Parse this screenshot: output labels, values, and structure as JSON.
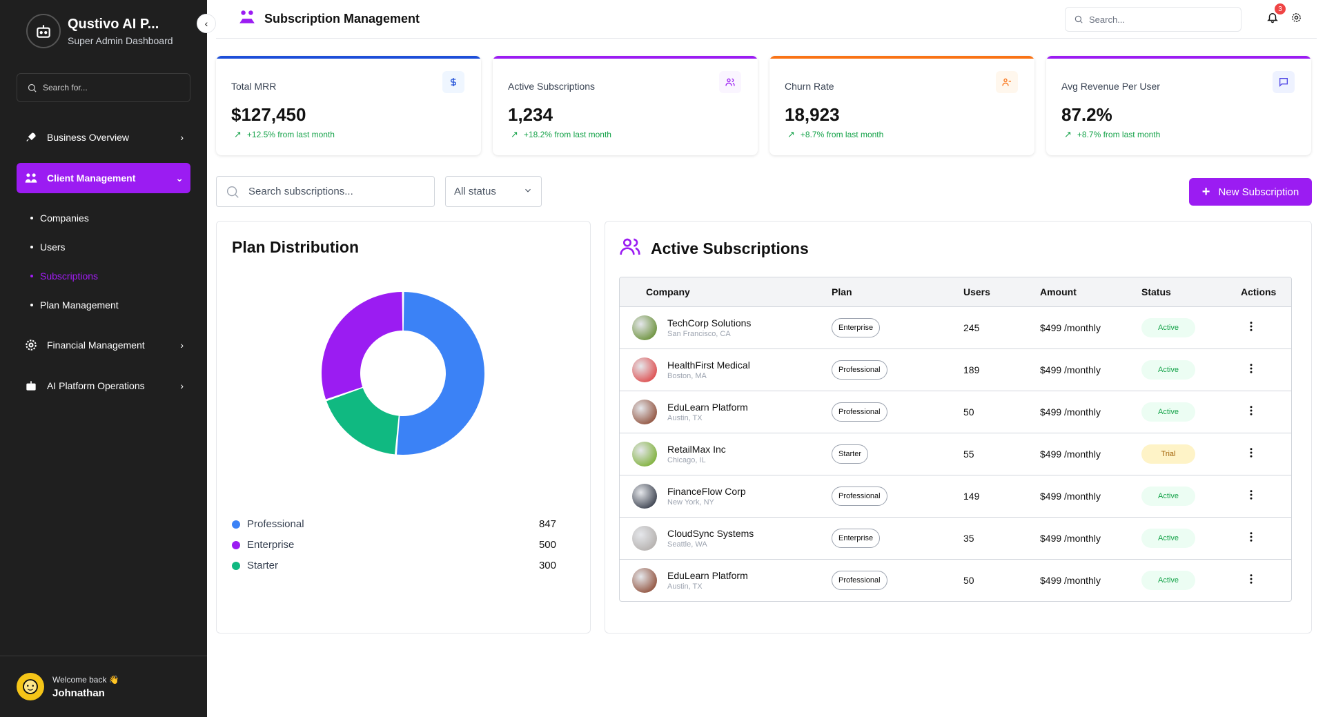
{
  "sidebar": {
    "brand_title": "Qustivo AI P...",
    "brand_subtitle": "Super Admin Dashboard",
    "search_placeholder": "Search for...",
    "nav": [
      {
        "label": "Business Overview",
        "icon": "rocket-icon"
      },
      {
        "label": "Client Management",
        "icon": "users-group-icon",
        "active": true
      },
      {
        "label": "Financial Management",
        "icon": "gear-icon"
      },
      {
        "label": "AI Platform Operations",
        "icon": "robot-icon"
      }
    ],
    "sub_items": [
      {
        "label": "Companies"
      },
      {
        "label": "Users"
      },
      {
        "label": "Subscriptions",
        "active": true
      },
      {
        "label": "Plan Management"
      }
    ],
    "welcome": "Welcome back 👋",
    "username": "Johnathan"
  },
  "header": {
    "title": "Subscription Management",
    "search_placeholder": "Search...",
    "notification_count": "3"
  },
  "stats": [
    {
      "label": "Total MRR",
      "value": "$127,450",
      "change": "+12.5% from last month",
      "accent": "#1d4ed8",
      "icon": "dollar-icon"
    },
    {
      "label": "Active Subscriptions",
      "value": "1,234",
      "change": "+18.2% from last month",
      "accent": "#9b1cf2",
      "icon": "users-icon"
    },
    {
      "label": "Churn Rate",
      "value": "18,923",
      "change": "+8.7% from last month",
      "accent": "#f97316",
      "icon": "user-minus-icon"
    },
    {
      "label": "Avg Revenue Per User",
      "value": "87.2%",
      "change": "+8.7% from last month",
      "accent": "#9b1cf2",
      "icon": "message-icon"
    }
  ],
  "filters": {
    "search_placeholder": "Search subscriptions...",
    "status_value": "All status",
    "new_button": "New Subscription"
  },
  "plan_distribution": {
    "title": "Plan Distribution",
    "legend": [
      {
        "name": "Professional",
        "value": "847",
        "color": "#3b82f6"
      },
      {
        "name": "Enterprise",
        "value": "500",
        "color": "#9b1cf2"
      },
      {
        "name": "Starter",
        "value": "300",
        "color": "#10b981"
      }
    ]
  },
  "chart_data": {
    "type": "pie",
    "categories": [
      "Professional",
      "Starter",
      "Enterprise"
    ],
    "values": [
      847,
      300,
      500
    ],
    "colors": [
      "#3b82f6",
      "#10b981",
      "#9b1cf2"
    ],
    "title": "Plan Distribution",
    "legend": "bottom"
  },
  "subscriptions": {
    "title": "Active Subscriptions",
    "columns": [
      "Company",
      "Plan",
      "Users",
      "Amount",
      "Status",
      "Actions"
    ],
    "rows": [
      {
        "company": "TechCorp Solutions",
        "location": "San Francisco, CA",
        "plan": "Enterprise",
        "users": "245",
        "amount": "$499 /monthly",
        "status": "Active",
        "avatar_color": "#4d7c0f"
      },
      {
        "company": "HealthFirst Medical",
        "location": "Boston, MA",
        "plan": "Professional",
        "users": "189",
        "amount": "$499 /monthly",
        "status": "Active",
        "avatar_color": "#dc2626"
      },
      {
        "company": "EduLearn Platform",
        "location": "Austin, TX",
        "plan": "Professional",
        "users": "50",
        "amount": "$499 /monthly",
        "status": "Active",
        "avatar_color": "#7c2d12"
      },
      {
        "company": "RetailMax Inc",
        "location": "Chicago, IL",
        "plan": "Starter",
        "users": "55",
        "amount": "$499 /monthly",
        "status": "Trial",
        "avatar_color": "#65a30d"
      },
      {
        "company": "FinanceFlow Corp",
        "location": "New York, NY",
        "plan": "Professional",
        "users": "149",
        "amount": "$499 /monthly",
        "status": "Active",
        "avatar_color": "#111827"
      },
      {
        "company": "CloudSync Systems",
        "location": "Seattle, WA",
        "plan": "Enterprise",
        "users": "35",
        "amount": "$499 /monthly",
        "status": "Active",
        "avatar_color": "#a8a29e"
      },
      {
        "company": "EduLearn Platform",
        "location": "Austin, TX",
        "plan": "Professional",
        "users": "50",
        "amount": "$499 /monthly",
        "status": "Active",
        "avatar_color": "#7c2d12"
      }
    ]
  }
}
